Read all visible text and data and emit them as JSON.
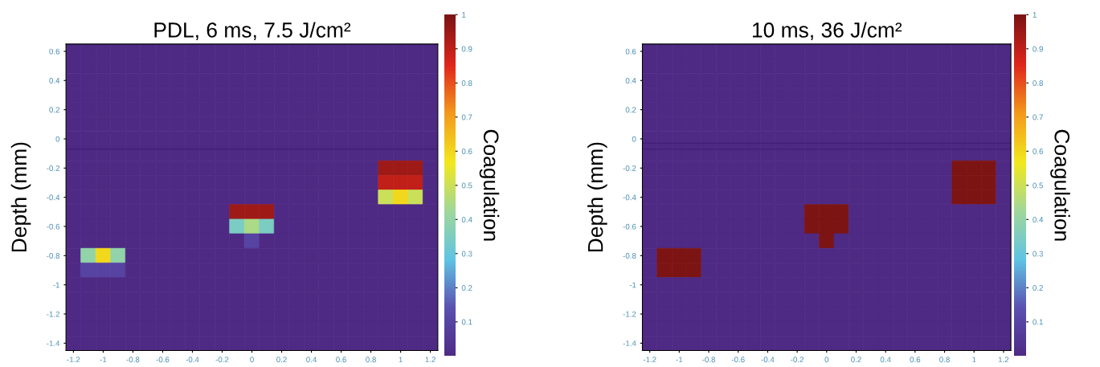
{
  "chart_data": [
    {
      "type": "heatmap",
      "title": "PDL, 6 ms, 7.5 J/cm²",
      "ylabel": "Depth (mm)",
      "clabel": "Coagulation",
      "x": [
        -1.2,
        -1.1,
        -1,
        -0.9,
        -0.8,
        -0.7,
        -0.6,
        -0.5,
        -0.4,
        -0.3,
        -0.2,
        -0.1,
        0,
        0.1,
        0.2,
        0.3,
        0.4,
        0.5,
        0.6,
        0.7,
        0.8,
        0.9,
        1,
        1.1,
        1.2
      ],
      "y": [
        0.6,
        0.5,
        0.4,
        0.3,
        0.2,
        0.1,
        0,
        -0.1,
        -0.2,
        -0.3,
        -0.4,
        -0.5,
        -0.6,
        -0.7,
        -0.8,
        -0.9,
        -1,
        -1.1,
        -1.2,
        -1.3,
        -1.4
      ],
      "cells": [
        [
          0,
          0,
          0,
          0,
          0,
          0,
          0,
          0,
          0,
          0,
          0,
          0,
          0,
          0,
          0,
          0,
          0,
          0,
          0,
          0,
          0,
          0,
          0,
          0,
          0
        ],
        [
          0,
          0,
          0,
          0,
          0,
          0,
          0,
          0,
          0,
          0,
          0,
          0,
          0,
          0,
          0,
          0,
          0,
          0,
          0,
          0,
          0,
          0,
          0,
          0,
          0
        ],
        [
          0,
          0,
          0,
          0,
          0,
          0,
          0,
          0,
          0,
          0,
          0,
          0,
          0,
          0,
          0,
          0,
          0,
          0,
          0,
          0,
          0,
          0,
          0,
          0,
          0
        ],
        [
          0,
          0,
          0,
          0,
          0,
          0,
          0,
          0,
          0,
          0,
          0,
          0,
          0,
          0,
          0,
          0,
          0,
          0,
          0,
          0,
          0,
          0,
          0,
          0,
          0
        ],
        [
          0,
          0,
          0,
          0,
          0,
          0,
          0,
          0,
          0,
          0,
          0,
          0,
          0,
          0,
          0,
          0,
          0,
          0,
          0,
          0,
          0,
          0,
          0,
          0,
          0
        ],
        [
          0,
          0,
          0,
          0,
          0,
          0,
          0,
          0,
          0,
          0,
          0,
          0,
          0,
          0,
          0,
          0,
          0,
          0,
          0,
          0,
          0,
          0,
          0,
          0,
          0
        ],
        [
          0,
          0,
          0,
          0,
          0,
          0,
          0,
          0,
          0,
          0,
          0,
          0,
          0,
          0,
          0,
          0,
          0,
          0,
          0,
          0,
          0,
          0,
          0,
          0,
          0
        ],
        [
          0,
          0,
          0,
          0,
          0,
          0,
          0,
          0,
          0,
          0,
          0,
          0,
          0,
          0,
          0,
          0,
          0,
          0,
          0,
          0,
          0,
          0,
          0,
          0,
          0
        ],
        [
          0,
          0,
          0,
          0,
          0,
          0,
          0,
          0,
          0,
          0,
          0,
          0,
          0,
          0,
          0,
          0,
          0,
          0,
          0,
          0,
          0,
          0.95,
          0.95,
          0.95,
          0
        ],
        [
          0,
          0,
          0,
          0,
          0,
          0,
          0,
          0,
          0,
          0,
          0,
          0,
          0,
          0,
          0,
          0,
          0,
          0,
          0,
          0,
          0,
          0.9,
          0.9,
          0.9,
          0
        ],
        [
          0,
          0,
          0,
          0,
          0,
          0,
          0,
          0,
          0,
          0,
          0,
          0,
          0,
          0,
          0,
          0,
          0,
          0,
          0,
          0,
          0,
          0.5,
          0.6,
          0.5,
          0
        ],
        [
          0,
          0,
          0,
          0,
          0,
          0,
          0,
          0,
          0,
          0,
          0,
          0.95,
          0.95,
          0.95,
          0,
          0,
          0,
          0,
          0,
          0,
          0,
          0,
          0,
          0,
          0
        ],
        [
          0,
          0,
          0,
          0,
          0,
          0,
          0,
          0,
          0,
          0,
          0,
          0.35,
          0.45,
          0.35,
          0,
          0,
          0,
          0,
          0,
          0,
          0,
          0,
          0,
          0,
          0
        ],
        [
          0,
          0,
          0,
          0,
          0,
          0,
          0,
          0,
          0,
          0,
          0,
          0,
          0.1,
          0,
          0,
          0,
          0,
          0,
          0,
          0,
          0,
          0,
          0,
          0,
          0
        ],
        [
          0,
          0.4,
          0.6,
          0.4,
          0,
          0,
          0,
          0,
          0,
          0,
          0,
          0,
          0,
          0,
          0,
          0,
          0,
          0,
          0,
          0,
          0,
          0,
          0,
          0,
          0
        ],
        [
          0,
          0.1,
          0.1,
          0.1,
          0,
          0,
          0,
          0,
          0,
          0,
          0,
          0,
          0,
          0,
          0,
          0,
          0,
          0,
          0,
          0,
          0,
          0,
          0,
          0,
          0
        ],
        [
          0,
          0,
          0,
          0,
          0,
          0,
          0,
          0,
          0,
          0,
          0,
          0,
          0,
          0,
          0,
          0,
          0,
          0,
          0,
          0,
          0,
          0,
          0,
          0,
          0
        ],
        [
          0,
          0,
          0,
          0,
          0,
          0,
          0,
          0,
          0,
          0,
          0,
          0,
          0,
          0,
          0,
          0,
          0,
          0,
          0,
          0,
          0,
          0,
          0,
          0,
          0
        ],
        [
          0,
          0,
          0,
          0,
          0,
          0,
          0,
          0,
          0,
          0,
          0,
          0,
          0,
          0,
          0,
          0,
          0,
          0,
          0,
          0,
          0,
          0,
          0,
          0,
          0
        ],
        [
          0,
          0,
          0,
          0,
          0,
          0,
          0,
          0,
          0,
          0,
          0,
          0,
          0,
          0,
          0,
          0,
          0,
          0,
          0,
          0,
          0,
          0,
          0,
          0,
          0
        ],
        [
          0,
          0,
          0,
          0,
          0,
          0,
          0,
          0,
          0,
          0,
          0,
          0,
          0,
          0,
          0,
          0,
          0,
          0,
          0,
          0,
          0,
          0,
          0,
          0,
          0
        ]
      ],
      "colors": [
        "#4e2a84",
        "#5a4fb0",
        "#5fc3e4",
        "#9fd79a",
        "#f2e81c",
        "#f39a1c",
        "#e0261c",
        "#7d1414"
      ],
      "clim": [
        0,
        1
      ],
      "cticks": [
        0.1,
        0.2,
        0.3,
        0.4,
        0.5,
        0.6,
        0.7,
        0.8,
        0.9,
        1
      ],
      "xlim": [
        -1.25,
        1.25
      ],
      "ylim": [
        -1.45,
        0.65
      ],
      "xticks": [
        -1.2,
        -1,
        -0.8,
        -0.6,
        -0.4,
        -0.2,
        0,
        0.2,
        0.4,
        0.6,
        0.8,
        1,
        1.2
      ],
      "yticks": [
        -1.4,
        -1.2,
        -1,
        -0.8,
        -0.6,
        -0.4,
        -0.2,
        0,
        0.2,
        0.4,
        0.6
      ],
      "ref_lines": [
        {
          "axis": "y",
          "value": -0.07,
          "color": "#42207a"
        }
      ]
    },
    {
      "type": "heatmap",
      "title": "10 ms, 36 J/cm²",
      "ylabel": "Depth (mm)",
      "clabel": "Coagulation",
      "x": [
        -1.2,
        -1.1,
        -1,
        -0.9,
        -0.8,
        -0.7,
        -0.6,
        -0.5,
        -0.4,
        -0.3,
        -0.2,
        -0.1,
        0,
        0.1,
        0.2,
        0.3,
        0.4,
        0.5,
        0.6,
        0.7,
        0.8,
        0.9,
        1,
        1.1,
        1.2
      ],
      "y": [
        0.6,
        0.5,
        0.4,
        0.3,
        0.2,
        0.1,
        0,
        -0.1,
        -0.2,
        -0.3,
        -0.4,
        -0.5,
        -0.6,
        -0.7,
        -0.8,
        -0.9,
        -1,
        -1.1,
        -1.2,
        -1.3,
        -1.4
      ],
      "cells": [
        [
          0,
          0,
          0,
          0,
          0,
          0,
          0,
          0,
          0,
          0,
          0,
          0,
          0,
          0,
          0,
          0,
          0,
          0,
          0,
          0,
          0,
          0,
          0,
          0,
          0
        ],
        [
          0,
          0,
          0,
          0,
          0,
          0,
          0,
          0,
          0,
          0,
          0,
          0,
          0,
          0,
          0,
          0,
          0,
          0,
          0,
          0,
          0,
          0,
          0,
          0,
          0
        ],
        [
          0,
          0,
          0,
          0,
          0,
          0,
          0,
          0,
          0,
          0,
          0,
          0,
          0,
          0,
          0,
          0,
          0,
          0,
          0,
          0,
          0,
          0,
          0,
          0,
          0
        ],
        [
          0,
          0,
          0,
          0,
          0,
          0,
          0,
          0,
          0,
          0,
          0,
          0,
          0,
          0,
          0,
          0,
          0,
          0,
          0,
          0,
          0,
          0,
          0,
          0,
          0
        ],
        [
          0,
          0,
          0,
          0,
          0,
          0,
          0,
          0,
          0,
          0,
          0,
          0,
          0,
          0,
          0,
          0,
          0,
          0,
          0,
          0,
          0,
          0,
          0,
          0,
          0
        ],
        [
          0,
          0,
          0,
          0,
          0,
          0,
          0,
          0,
          0,
          0,
          0,
          0,
          0,
          0,
          0,
          0,
          0,
          0,
          0,
          0,
          0,
          0,
          0,
          0,
          0
        ],
        [
          0,
          0,
          0,
          0,
          0,
          0,
          0,
          0,
          0,
          0,
          0,
          0,
          0,
          0,
          0,
          0,
          0,
          0,
          0,
          0,
          0,
          0,
          0,
          0,
          0
        ],
        [
          0,
          0,
          0,
          0,
          0,
          0,
          0,
          0,
          0,
          0,
          0,
          0,
          0,
          0,
          0,
          0,
          0,
          0,
          0,
          0,
          0,
          0,
          0,
          0,
          0
        ],
        [
          0,
          0,
          0,
          0,
          0,
          0,
          0,
          0,
          0,
          0,
          0,
          0,
          0,
          0,
          0,
          0,
          0,
          0,
          0,
          0,
          0,
          1,
          1,
          1,
          0
        ],
        [
          0,
          0,
          0,
          0,
          0,
          0,
          0,
          0,
          0,
          0,
          0,
          0,
          0,
          0,
          0,
          0,
          0,
          0,
          0,
          0,
          0,
          1,
          1,
          1,
          0
        ],
        [
          0,
          0,
          0,
          0,
          0,
          0,
          0,
          0,
          0,
          0,
          0,
          0,
          0,
          0,
          0,
          0,
          0,
          0,
          0,
          0,
          0,
          1,
          1,
          1,
          0
        ],
        [
          0,
          0,
          0,
          0,
          0,
          0,
          0,
          0,
          0,
          0,
          0,
          1,
          1,
          1,
          0,
          0,
          0,
          0,
          0,
          0,
          0,
          0,
          0,
          0,
          0
        ],
        [
          0,
          0,
          0,
          0,
          0,
          0,
          0,
          0,
          0,
          0,
          0,
          1,
          1,
          1,
          0,
          0,
          0,
          0,
          0,
          0,
          0,
          0,
          0,
          0,
          0
        ],
        [
          0,
          0,
          0,
          0,
          0,
          0,
          0,
          0,
          0,
          0,
          0,
          0,
          1,
          0,
          0,
          0,
          0,
          0,
          0,
          0,
          0,
          0,
          0,
          0,
          0
        ],
        [
          0,
          1,
          1,
          1,
          0,
          0,
          0,
          0,
          0,
          0,
          0,
          0,
          0,
          0,
          0,
          0,
          0,
          0,
          0,
          0,
          0,
          0,
          0,
          0,
          0
        ],
        [
          0,
          1,
          1,
          1,
          0,
          0,
          0,
          0,
          0,
          0,
          0,
          0,
          0,
          0,
          0,
          0,
          0,
          0,
          0,
          0,
          0,
          0,
          0,
          0,
          0
        ],
        [
          0,
          0,
          0,
          0,
          0,
          0,
          0,
          0,
          0,
          0,
          0,
          0,
          0,
          0,
          0,
          0,
          0,
          0,
          0,
          0,
          0,
          0,
          0,
          0,
          0
        ],
        [
          0,
          0,
          0,
          0,
          0,
          0,
          0,
          0,
          0,
          0,
          0,
          0,
          0,
          0,
          0,
          0,
          0,
          0,
          0,
          0,
          0,
          0,
          0,
          0,
          0
        ],
        [
          0,
          0,
          0,
          0,
          0,
          0,
          0,
          0,
          0,
          0,
          0,
          0,
          0,
          0,
          0,
          0,
          0,
          0,
          0,
          0,
          0,
          0,
          0,
          0,
          0
        ],
        [
          0,
          0,
          0,
          0,
          0,
          0,
          0,
          0,
          0,
          0,
          0,
          0,
          0,
          0,
          0,
          0,
          0,
          0,
          0,
          0,
          0,
          0,
          0,
          0,
          0
        ],
        [
          0,
          0,
          0,
          0,
          0,
          0,
          0,
          0,
          0,
          0,
          0,
          0,
          0,
          0,
          0,
          0,
          0,
          0,
          0,
          0,
          0,
          0,
          0,
          0,
          0
        ]
      ],
      "colors": [
        "#4e2a84",
        "#5a4fb0",
        "#5fc3e4",
        "#9fd79a",
        "#f2e81c",
        "#f39a1c",
        "#e0261c",
        "#7d1414"
      ],
      "clim": [
        0,
        1
      ],
      "cticks": [
        0.1,
        0.2,
        0.3,
        0.4,
        0.5,
        0.6,
        0.7,
        0.8,
        0.9,
        1
      ],
      "xlim": [
        -1.25,
        1.25
      ],
      "ylim": [
        -1.45,
        0.65
      ],
      "xticks": [
        -1.2,
        -1,
        -0.8,
        -0.6,
        -0.4,
        -0.2,
        0,
        0.2,
        0.4,
        0.6,
        0.8,
        1,
        1.2
      ],
      "yticks": [
        -1.4,
        -1.2,
        -1,
        -0.8,
        -0.6,
        -0.4,
        -0.2,
        0,
        0.2,
        0.4,
        0.6
      ],
      "ref_lines": [
        {
          "axis": "y",
          "value": -0.03,
          "color": "#42207a"
        },
        {
          "axis": "y",
          "value": -0.07,
          "color": "#42207a"
        }
      ]
    }
  ]
}
